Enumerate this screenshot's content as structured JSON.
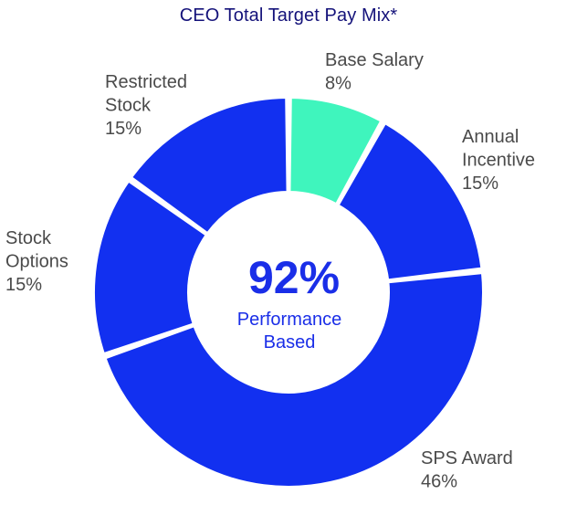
{
  "chart_data": {
    "type": "pie",
    "variant": "donut",
    "title": "CEO Total Target Pay Mix*",
    "slices": [
      {
        "name": "Base Salary",
        "label_lines": [
          "Base Salary"
        ],
        "value": 8,
        "value_label": "8%",
        "color": "#3ff5bd"
      },
      {
        "name": "Annual Incentive",
        "label_lines": [
          "Annual",
          "Incentive"
        ],
        "value": 15,
        "value_label": "15%",
        "color": "#1230f0"
      },
      {
        "name": "SPS Award",
        "label_lines": [
          "SPS Award"
        ],
        "value": 46,
        "value_label": "46%",
        "color": "#1230f0"
      },
      {
        "name": "Stock Options",
        "label_lines": [
          "Stock",
          "Options"
        ],
        "value": 15,
        "value_label": "15%",
        "color": "#1230f0"
      },
      {
        "name": "Restricted Stock",
        "label_lines": [
          "Restricted",
          "Stock"
        ],
        "value": 15,
        "value_label": "15%",
        "color": "#1230f0"
      }
    ],
    "center": {
      "value_label": "92%",
      "caption_lines": [
        "Performance",
        "Based"
      ]
    }
  },
  "colors": {
    "title": "#14127a",
    "label": "#4a4a4a",
    "center": "#1a2ee8",
    "separator": "#ffffff"
  }
}
